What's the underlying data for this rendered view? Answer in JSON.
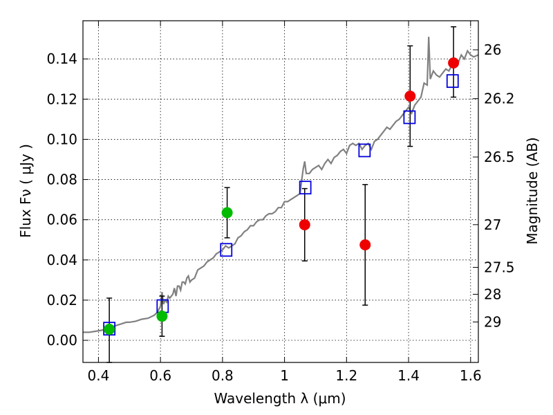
{
  "chart_data": {
    "type": "scatter",
    "xlabel": "Wavelength  λ (μm)",
    "ylabel": "Flux  Fν  ( μJy )",
    "y2label": "Magnitude (AB)",
    "xlim": [
      0.35,
      1.625
    ],
    "ylim": [
      -0.011,
      0.159
    ],
    "grid": true,
    "x_ticks": [
      {
        "value": 0.4,
        "label": "0.4"
      },
      {
        "value": 0.6,
        "label": "0.6"
      },
      {
        "value": 0.8,
        "label": "0.8"
      },
      {
        "value": 1.0,
        "label": "1"
      },
      {
        "value": 1.2,
        "label": "1.2"
      },
      {
        "value": 1.4,
        "label": "1.4"
      },
      {
        "value": 1.6,
        "label": "1.6"
      }
    ],
    "y_ticks": [
      {
        "value": 0.0,
        "label": "0.00"
      },
      {
        "value": 0.02,
        "label": "0.02"
      },
      {
        "value": 0.04,
        "label": "0.04"
      },
      {
        "value": 0.06,
        "label": "0.06"
      },
      {
        "value": 0.08,
        "label": "0.08"
      },
      {
        "value": 0.1,
        "label": "0.10"
      },
      {
        "value": 0.12,
        "label": "0.12"
      },
      {
        "value": 0.14,
        "label": "0.14"
      }
    ],
    "y2_ticks": [
      {
        "mag": 26,
        "label": "26"
      },
      {
        "mag": 26.2,
        "label": "26.2"
      },
      {
        "mag": 26.5,
        "label": "26.5"
      },
      {
        "mag": 27,
        "label": "27"
      },
      {
        "mag": 27.5,
        "label": "27.5"
      },
      {
        "mag": 28,
        "label": "28"
      },
      {
        "mag": 29,
        "label": "29"
      }
    ],
    "colors": {
      "spectrum": "#808080",
      "green": "#00bb00",
      "red": "#ee0000",
      "model_box": "#0000dd",
      "errorbar": "#000000"
    },
    "series": [
      {
        "kind": "spectrum-line",
        "points": [
          [
            0.35,
            0.004
          ],
          [
            0.37,
            0.004
          ],
          [
            0.39,
            0.0045
          ],
          [
            0.41,
            0.005
          ],
          [
            0.42,
            0.0055
          ],
          [
            0.43,
            0.0055
          ],
          [
            0.44,
            0.0065
          ],
          [
            0.45,
            0.007
          ],
          [
            0.46,
            0.0075
          ],
          [
            0.47,
            0.008
          ],
          [
            0.48,
            0.0085
          ],
          [
            0.49,
            0.009
          ],
          [
            0.5,
            0.009
          ],
          [
            0.52,
            0.0095
          ],
          [
            0.54,
            0.0105
          ],
          [
            0.56,
            0.011
          ],
          [
            0.58,
            0.0125
          ],
          [
            0.59,
            0.014
          ],
          [
            0.6,
            0.017
          ],
          [
            0.605,
            0.024
          ],
          [
            0.61,
            0.018
          ],
          [
            0.615,
            0.02
          ],
          [
            0.62,
            0.019
          ],
          [
            0.625,
            0.022
          ],
          [
            0.63,
            0.021
          ],
          [
            0.64,
            0.023
          ],
          [
            0.645,
            0.026
          ],
          [
            0.65,
            0.022
          ],
          [
            0.655,
            0.027
          ],
          [
            0.66,
            0.027
          ],
          [
            0.665,
            0.025
          ],
          [
            0.67,
            0.029
          ],
          [
            0.675,
            0.029
          ],
          [
            0.68,
            0.028
          ],
          [
            0.685,
            0.031
          ],
          [
            0.69,
            0.032
          ],
          [
            0.695,
            0.029
          ],
          [
            0.7,
            0.03
          ],
          [
            0.71,
            0.031
          ],
          [
            0.72,
            0.035
          ],
          [
            0.73,
            0.036
          ],
          [
            0.74,
            0.037
          ],
          [
            0.75,
            0.039
          ],
          [
            0.76,
            0.04
          ],
          [
            0.77,
            0.041
          ],
          [
            0.78,
            0.043
          ],
          [
            0.79,
            0.044
          ],
          [
            0.8,
            0.045
          ],
          [
            0.81,
            0.047
          ],
          [
            0.82,
            0.046
          ],
          [
            0.83,
            0.047
          ],
          [
            0.84,
            0.048
          ],
          [
            0.85,
            0.051
          ],
          [
            0.86,
            0.052
          ],
          [
            0.87,
            0.054
          ],
          [
            0.88,
            0.055
          ],
          [
            0.89,
            0.057
          ],
          [
            0.9,
            0.057
          ],
          [
            0.91,
            0.059
          ],
          [
            0.92,
            0.06
          ],
          [
            0.93,
            0.06
          ],
          [
            0.94,
            0.062
          ],
          [
            0.95,
            0.063
          ],
          [
            0.96,
            0.063
          ],
          [
            0.97,
            0.064
          ],
          [
            0.98,
            0.066
          ],
          [
            0.99,
            0.066
          ],
          [
            1.0,
            0.069
          ],
          [
            1.01,
            0.069
          ],
          [
            1.02,
            0.07
          ],
          [
            1.03,
            0.071
          ],
          [
            1.04,
            0.072
          ],
          [
            1.05,
            0.073
          ],
          [
            1.06,
            0.085
          ],
          [
            1.065,
            0.089
          ],
          [
            1.07,
            0.083
          ],
          [
            1.08,
            0.083
          ],
          [
            1.09,
            0.085
          ],
          [
            1.1,
            0.086
          ],
          [
            1.11,
            0.087
          ],
          [
            1.12,
            0.085
          ],
          [
            1.13,
            0.088
          ],
          [
            1.14,
            0.09
          ],
          [
            1.15,
            0.088
          ],
          [
            1.16,
            0.091
          ],
          [
            1.17,
            0.092
          ],
          [
            1.18,
            0.094
          ],
          [
            1.19,
            0.095
          ],
          [
            1.2,
            0.093
          ],
          [
            1.21,
            0.097
          ],
          [
            1.22,
            0.098
          ],
          [
            1.23,
            0.097
          ],
          [
            1.24,
            0.098
          ],
          [
            1.25,
            0.095
          ],
          [
            1.26,
            0.097
          ],
          [
            1.27,
            0.098
          ],
          [
            1.28,
            0.095
          ],
          [
            1.29,
            0.099
          ],
          [
            1.3,
            0.1
          ],
          [
            1.31,
            0.102
          ],
          [
            1.32,
            0.104
          ],
          [
            1.33,
            0.106
          ],
          [
            1.34,
            0.105
          ],
          [
            1.35,
            0.107
          ],
          [
            1.36,
            0.109
          ],
          [
            1.37,
            0.11
          ],
          [
            1.38,
            0.112
          ],
          [
            1.39,
            0.114
          ],
          [
            1.4,
            0.116
          ],
          [
            1.41,
            0.113
          ],
          [
            1.42,
            0.117
          ],
          [
            1.43,
            0.119
          ],
          [
            1.44,
            0.121
          ],
          [
            1.45,
            0.128
          ],
          [
            1.46,
            0.127
          ],
          [
            1.465,
            0.151
          ],
          [
            1.47,
            0.13
          ],
          [
            1.48,
            0.134
          ],
          [
            1.49,
            0.132
          ],
          [
            1.5,
            0.131
          ],
          [
            1.51,
            0.133
          ],
          [
            1.52,
            0.135
          ],
          [
            1.53,
            0.134
          ],
          [
            1.54,
            0.137
          ],
          [
            1.55,
            0.139
          ],
          [
            1.56,
            0.138
          ],
          [
            1.57,
            0.142
          ],
          [
            1.58,
            0.14
          ],
          [
            1.59,
            0.144
          ],
          [
            1.6,
            0.142
          ],
          [
            1.61,
            0.141
          ],
          [
            1.625,
            0.142
          ]
        ]
      },
      {
        "kind": "green-points",
        "points": [
          {
            "x": 0.435,
            "y": 0.0055,
            "err_lo": 0.0165,
            "err_hi": 0.0155
          },
          {
            "x": 0.605,
            "y": 0.012,
            "err_lo": 0.01,
            "err_hi": 0.01
          },
          {
            "x": 0.815,
            "y": 0.0635,
            "err_lo": 0.0125,
            "err_hi": 0.0125
          }
        ]
      },
      {
        "kind": "red-points",
        "points": [
          {
            "x": 1.065,
            "y": 0.0575,
            "err_lo": 0.018,
            "err_hi": 0.018
          },
          {
            "x": 1.26,
            "y": 0.0475,
            "err_lo": 0.03,
            "err_hi": 0.03
          },
          {
            "x": 1.405,
            "y": 0.1215,
            "err_lo": 0.025,
            "err_hi": 0.025
          },
          {
            "x": 1.545,
            "y": 0.138,
            "err_lo": 0.017,
            "err_hi": 0.018
          }
        ]
      },
      {
        "kind": "model-boxes",
        "points": [
          {
            "x": 0.435,
            "y": 0.0058
          },
          {
            "x": 0.607,
            "y": 0.017
          },
          {
            "x": 0.812,
            "y": 0.045
          },
          {
            "x": 1.067,
            "y": 0.076
          },
          {
            "x": 1.258,
            "y": 0.0945
          },
          {
            "x": 1.403,
            "y": 0.111
          },
          {
            "x": 1.542,
            "y": 0.129
          }
        ]
      }
    ]
  }
}
